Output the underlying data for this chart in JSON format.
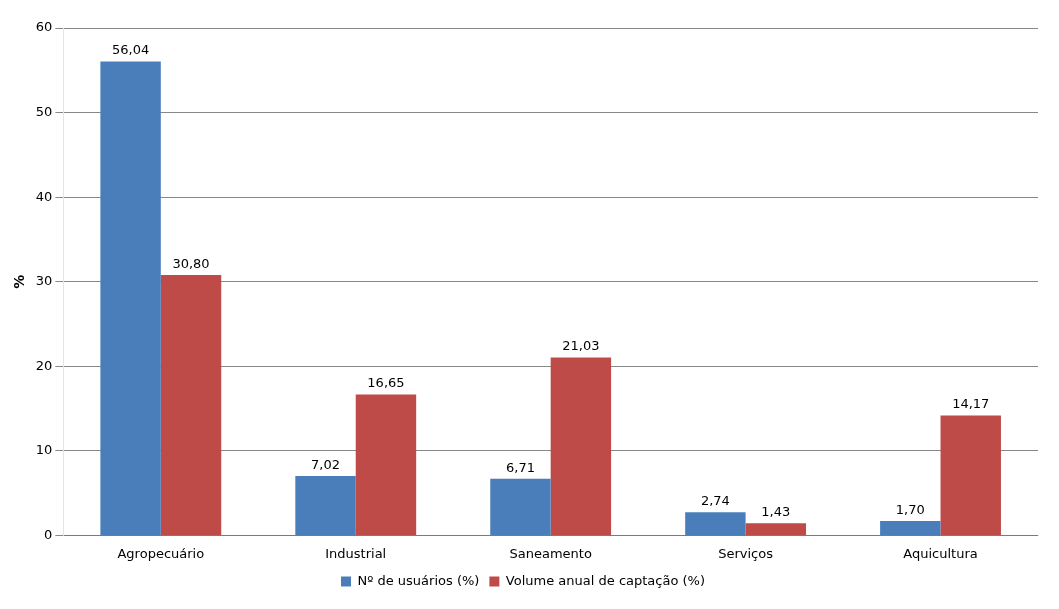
{
  "chart_data": {
    "type": "bar",
    "ylabel": "%",
    "categories": [
      "Agropecuário",
      "Industrial",
      "Saneamento",
      "Serviços",
      "Aquicultura"
    ],
    "series": [
      {
        "name": "Nº de usuários (%)",
        "color": "#4a7ebb",
        "values": [
          56.04,
          7.02,
          6.71,
          2.74,
          1.7
        ],
        "value_labels": [
          "56,04",
          "7,02",
          "6,71",
          "2,74",
          "1,70"
        ]
      },
      {
        "name": "Volume anual de captação (%)",
        "color": "#be4b48",
        "values": [
          30.8,
          16.65,
          21.03,
          1.43,
          14.17
        ],
        "value_labels": [
          "30,80",
          "16,65",
          "21,03",
          "1,43",
          "14,17"
        ]
      }
    ],
    "ylim": [
      0,
      60
    ],
    "yticks": [
      0,
      10,
      20,
      30,
      40,
      50,
      60
    ],
    "grid": "y",
    "legend": "bottom"
  }
}
